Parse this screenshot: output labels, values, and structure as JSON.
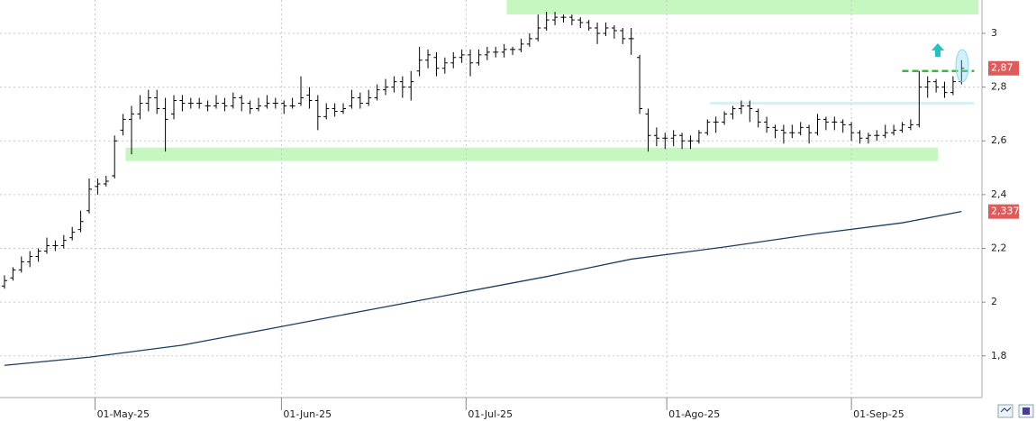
{
  "chart_data": {
    "type": "ohlc",
    "xlim": [
      -0.53,
      115.2
    ],
    "ylim": [
      1.645,
      3.124
    ],
    "yticks": [
      3,
      {
        "value": 2.8,
        "label": "2,8"
      },
      {
        "value": 2.6,
        "label": "2,6"
      },
      {
        "value": 2.4,
        "label": "2,4"
      },
      {
        "value": 2.2,
        "label": "2,2"
      },
      2,
      {
        "value": 1.8,
        "label": "1,8"
      }
    ],
    "xticks": [
      {
        "value": 10.7,
        "label": "01-May-25"
      },
      {
        "value": 32.7,
        "label": "01-Jun-25"
      },
      {
        "value": 54.5,
        "label": "01-Jul-25"
      },
      {
        "value": 78.2,
        "label": "01-Ago-25"
      },
      {
        "value": 100,
        "label": "01-Sep-25"
      }
    ],
    "grid": true,
    "color": "#000000",
    "ohlc": [
      [
        2.06,
        2.1,
        2.05,
        2.08
      ],
      [
        2.09,
        2.13,
        2.08,
        2.12
      ],
      [
        2.12,
        2.17,
        2.11,
        2.15
      ],
      [
        2.15,
        2.19,
        2.13,
        2.17
      ],
      [
        2.17,
        2.2,
        2.15,
        2.19
      ],
      [
        2.19,
        2.24,
        2.18,
        2.21
      ],
      [
        2.21,
        2.23,
        2.19,
        2.21
      ],
      [
        2.21,
        2.25,
        2.2,
        2.23
      ],
      [
        2.24,
        2.28,
        2.23,
        2.26
      ],
      [
        2.27,
        2.34,
        2.26,
        2.3
      ],
      [
        2.34,
        2.46,
        2.33,
        2.42
      ],
      [
        2.43,
        2.46,
        2.4,
        2.44
      ],
      [
        2.44,
        2.47,
        2.43,
        2.45
      ],
      [
        2.47,
        2.62,
        2.46,
        2.6
      ],
      [
        2.64,
        2.7,
        2.62,
        2.68
      ],
      [
        2.68,
        2.73,
        2.55,
        2.7
      ],
      [
        2.7,
        2.77,
        2.68,
        2.74
      ],
      [
        2.74,
        2.79,
        2.71,
        2.76
      ],
      [
        2.76,
        2.79,
        2.7,
        2.72
      ],
      [
        2.72,
        2.76,
        2.56,
        2.68
      ],
      [
        2.7,
        2.77,
        2.68,
        2.75
      ],
      [
        2.75,
        2.77,
        2.71,
        2.74
      ],
      [
        2.74,
        2.76,
        2.72,
        2.74
      ],
      [
        2.74,
        2.76,
        2.72,
        2.74
      ],
      [
        2.73,
        2.75,
        2.71,
        2.73
      ],
      [
        2.73,
        2.77,
        2.72,
        2.74
      ],
      [
        2.74,
        2.76,
        2.71,
        2.73
      ],
      [
        2.73,
        2.78,
        2.72,
        2.76
      ],
      [
        2.76,
        2.77,
        2.71,
        2.74
      ],
      [
        2.74,
        2.75,
        2.7,
        2.72
      ],
      [
        2.72,
        2.76,
        2.71,
        2.73
      ],
      [
        2.73,
        2.77,
        2.72,
        2.74
      ],
      [
        2.74,
        2.76,
        2.72,
        2.74
      ],
      [
        2.74,
        2.75,
        2.7,
        2.73
      ],
      [
        2.73,
        2.76,
        2.72,
        2.73
      ],
      [
        2.74,
        2.84,
        2.73,
        2.76
      ],
      [
        2.77,
        2.8,
        2.72,
        2.75
      ],
      [
        2.75,
        2.77,
        2.64,
        2.69
      ],
      [
        2.69,
        2.74,
        2.68,
        2.72
      ],
      [
        2.72,
        2.74,
        2.69,
        2.71
      ],
      [
        2.71,
        2.74,
        2.7,
        2.72
      ],
      [
        2.73,
        2.79,
        2.72,
        2.76
      ],
      [
        2.76,
        2.78,
        2.72,
        2.74
      ],
      [
        2.74,
        2.79,
        2.73,
        2.76
      ],
      [
        2.76,
        2.81,
        2.75,
        2.79
      ],
      [
        2.79,
        2.83,
        2.77,
        2.8
      ],
      [
        2.8,
        2.84,
        2.78,
        2.82
      ],
      [
        2.82,
        2.84,
        2.76,
        2.8
      ],
      [
        2.8,
        2.86,
        2.75,
        2.82
      ],
      [
        2.86,
        2.95,
        2.84,
        2.9
      ],
      [
        2.9,
        2.94,
        2.87,
        2.92
      ],
      [
        2.91,
        2.93,
        2.84,
        2.87
      ],
      [
        2.87,
        2.91,
        2.85,
        2.89
      ],
      [
        2.89,
        2.93,
        2.87,
        2.91
      ],
      [
        2.91,
        2.94,
        2.89,
        2.92
      ],
      [
        2.92,
        2.94,
        2.84,
        2.89
      ],
      [
        2.89,
        2.94,
        2.88,
        2.92
      ],
      [
        2.92,
        2.95,
        2.9,
        2.93
      ],
      [
        2.93,
        2.95,
        2.91,
        2.93
      ],
      [
        2.93,
        2.96,
        2.91,
        2.94
      ],
      [
        2.94,
        2.95,
        2.92,
        2.94
      ],
      [
        2.94,
        2.98,
        2.93,
        2.96
      ],
      [
        2.96,
        3.0,
        2.95,
        2.98
      ],
      [
        2.98,
        3.07,
        2.97,
        3.02
      ],
      [
        3.02,
        3.08,
        3.01,
        3.05
      ],
      [
        3.05,
        3.08,
        3.03,
        3.06
      ],
      [
        3.06,
        3.07,
        3.04,
        3.06
      ],
      [
        3.06,
        3.07,
        3.03,
        3.05
      ],
      [
        3.05,
        3.06,
        3.02,
        3.04
      ],
      [
        3.04,
        3.05,
        3.01,
        3.02
      ],
      [
        3.02,
        3.04,
        2.96,
        3.0
      ],
      [
        3.0,
        3.04,
        2.99,
        3.02
      ],
      [
        3.02,
        3.03,
        2.98,
        3.01
      ],
      [
        3.01,
        3.02,
        2.96,
        2.98
      ],
      [
        2.98,
        3.02,
        2.92,
        2.98
      ],
      [
        2.91,
        2.92,
        2.7,
        2.72
      ],
      [
        2.7,
        2.72,
        2.56,
        2.62
      ],
      [
        2.62,
        2.65,
        2.58,
        2.61
      ],
      [
        2.61,
        2.63,
        2.57,
        2.61
      ],
      [
        2.61,
        2.64,
        2.58,
        2.62
      ],
      [
        2.62,
        2.63,
        2.57,
        2.6
      ],
      [
        2.6,
        2.62,
        2.57,
        2.6
      ],
      [
        2.6,
        2.64,
        2.59,
        2.63
      ],
      [
        2.63,
        2.68,
        2.62,
        2.67
      ],
      [
        2.67,
        2.69,
        2.63,
        2.67
      ],
      [
        2.67,
        2.71,
        2.66,
        2.7
      ],
      [
        2.7,
        2.73,
        2.68,
        2.72
      ],
      [
        2.72,
        2.75,
        2.7,
        2.73
      ],
      [
        2.73,
        2.75,
        2.67,
        2.72
      ],
      [
        2.71,
        2.72,
        2.65,
        2.67
      ],
      [
        2.67,
        2.69,
        2.63,
        2.65
      ],
      [
        2.65,
        2.66,
        2.61,
        2.64
      ],
      [
        2.64,
        2.66,
        2.59,
        2.63
      ],
      [
        2.63,
        2.66,
        2.61,
        2.63
      ],
      [
        2.63,
        2.67,
        2.62,
        2.65
      ],
      [
        2.65,
        2.66,
        2.59,
        2.63
      ],
      [
        2.63,
        2.7,
        2.62,
        2.68
      ],
      [
        2.68,
        2.69,
        2.64,
        2.67
      ],
      [
        2.67,
        2.69,
        2.64,
        2.67
      ],
      [
        2.67,
        2.68,
        2.63,
        2.66
      ],
      [
        2.66,
        2.67,
        2.6,
        2.63
      ],
      [
        2.63,
        2.64,
        2.59,
        2.61
      ],
      [
        2.61,
        2.63,
        2.59,
        2.62
      ],
      [
        2.62,
        2.64,
        2.6,
        2.62
      ],
      [
        2.62,
        2.66,
        2.61,
        2.63
      ],
      [
        2.63,
        2.66,
        2.62,
        2.64
      ],
      [
        2.64,
        2.67,
        2.63,
        2.66
      ],
      [
        2.65,
        2.68,
        2.64,
        2.66
      ],
      [
        2.66,
        2.86,
        2.65,
        2.8
      ],
      [
        2.8,
        2.84,
        2.76,
        2.82
      ],
      [
        2.82,
        2.83,
        2.78,
        2.8
      ],
      [
        2.8,
        2.82,
        2.76,
        2.78
      ],
      [
        2.78,
        2.84,
        2.77,
        2.82
      ],
      [
        2.82,
        2.9,
        2.81,
        2.87
      ]
    ],
    "moving_average": {
      "color": "#1b3d5e",
      "x": [
        0,
        10,
        21,
        32,
        42,
        53,
        64,
        74,
        85,
        96,
        106,
        113
      ],
      "values": [
        1.765,
        1.795,
        1.84,
        1.905,
        1.965,
        2.03,
        2.095,
        2.16,
        2.205,
        2.255,
        2.295,
        2.337
      ]
    },
    "price_labels": [
      {
        "value": 2.87,
        "label": "2,87",
        "color": "#e05a5a"
      },
      {
        "value": 2.337,
        "label": "2,337",
        "color": "#e05a5a"
      }
    ],
    "zones": [
      {
        "x": [
          59.3,
          115
        ],
        "y": [
          3.07,
          3.124
        ],
        "color": "#c6f7c0"
      },
      {
        "x": [
          14.3,
          110.2
        ],
        "y": [
          2.525,
          2.575
        ],
        "color": "#c6f7c0"
      },
      {
        "x": [
          83.3,
          114.5
        ],
        "y": [
          2.735,
          2.745
        ],
        "color": "#cdf4fb"
      }
    ],
    "level_line": {
      "x": [
        106,
        114.5
      ],
      "y": 2.86,
      "color": "#2fc02f"
    }
  }
}
